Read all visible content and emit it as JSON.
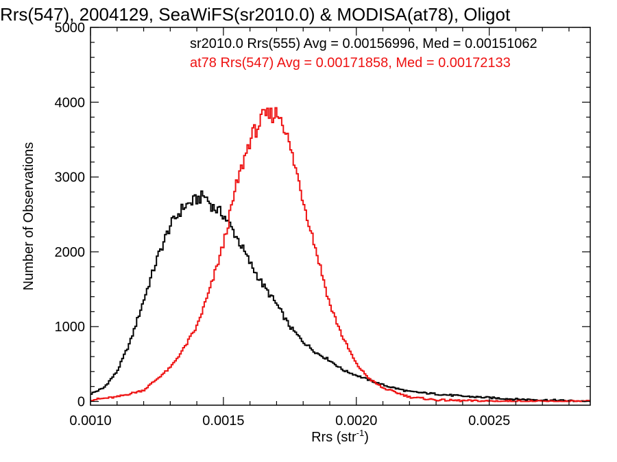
{
  "chart_data": {
    "type": "line",
    "step": true,
    "title": "Rrs(547), 2004129, SeaWiFS(sr2010.0) & MODISA(at78), Oligot",
    "xlabel": "Rrs (str",
    "xlabel_sup": "-1",
    "xlabel_close": ")",
    "ylabel": "Number of Observations",
    "xlim": [
      0.001,
      0.00288
    ],
    "ylim": [
      -50,
      5000
    ],
    "x_ticks": [
      0.001,
      0.0015,
      0.002,
      0.0025
    ],
    "x_tick_labels": [
      "0.0010",
      "0.0015",
      "0.0020",
      "0.0025"
    ],
    "y_ticks": [
      0,
      1000,
      2000,
      3000,
      4000,
      5000
    ],
    "y_tick_labels": [
      "0",
      "1000",
      "2000",
      "3000",
      "4000",
      "5000"
    ],
    "grid": false,
    "legend": [
      {
        "text": "sr2010.0 Rrs(555) Avg = 0.00156996, Med = 0.00151062",
        "color": "#000000"
      },
      {
        "text": "at78 Rrs(547) Avg = 0.00171858, Med = 0.00172133",
        "color": "#ee1111"
      }
    ],
    "series": [
      {
        "color": "#000000",
        "x": [
          0.001,
          0.00105,
          0.0011,
          0.00115,
          0.0012,
          0.00125,
          0.0013,
          0.00135,
          0.0014,
          0.00143,
          0.00146,
          0.0015,
          0.00155,
          0.0016,
          0.00165,
          0.0017,
          0.00175,
          0.0018,
          0.00185,
          0.0019,
          0.00195,
          0.002,
          0.0021,
          0.0022,
          0.0023,
          0.0024,
          0.0025,
          0.0026,
          0.0027,
          0.00288
        ],
        "y": [
          100,
          180,
          400,
          800,
          1350,
          1900,
          2350,
          2600,
          2700,
          2750,
          2600,
          2500,
          2200,
          1850,
          1550,
          1300,
          1000,
          800,
          650,
          550,
          420,
          350,
          220,
          130,
          100,
          70,
          50,
          30,
          20,
          0
        ]
      },
      {
        "color": "#ee1111",
        "x": [
          0.001,
          0.0011,
          0.0012,
          0.0013,
          0.00135,
          0.0014,
          0.00145,
          0.0015,
          0.00155,
          0.0016,
          0.00165,
          0.00168,
          0.0017,
          0.00172,
          0.00175,
          0.00178,
          0.0018,
          0.00185,
          0.0019,
          0.00195,
          0.002,
          0.00205,
          0.0021,
          0.0022,
          0.0023,
          0.0024,
          0.0025,
          0.0027,
          0.00288
        ],
        "y": [
          20,
          60,
          150,
          450,
          700,
          1000,
          1500,
          2100,
          2900,
          3500,
          3800,
          3830,
          3850,
          3800,
          3400,
          3000,
          2700,
          2000,
          1300,
          850,
          500,
          300,
          180,
          60,
          20,
          10,
          5,
          0,
          0
        ]
      }
    ]
  }
}
